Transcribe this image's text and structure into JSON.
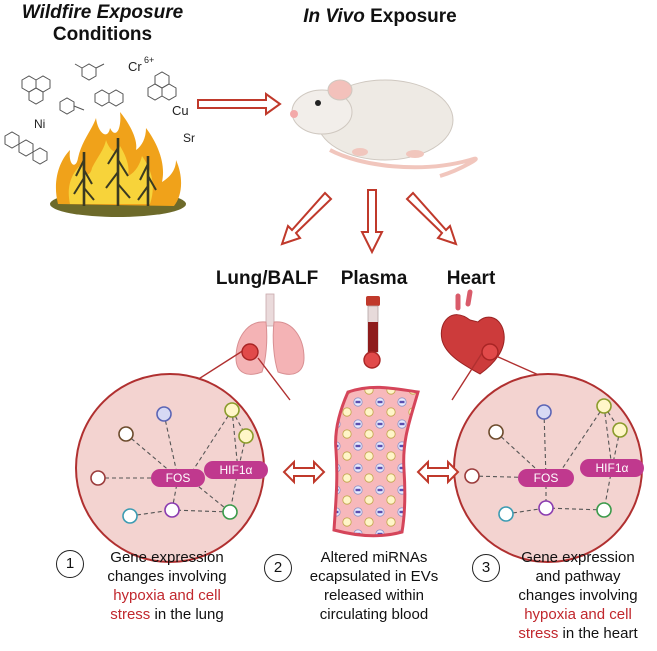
{
  "titles": {
    "exposure_line1": "Wildfire Exposure",
    "exposure_line2": "Conditions",
    "invivo_italic": "In Vivo",
    "invivo_rest": " Exposure"
  },
  "chemicals": [
    "Cr",
    "6+",
    "Ni",
    "Cu",
    "Sr"
  ],
  "tissues": {
    "lung": "Lung/BALF",
    "plasma": "Plasma",
    "heart": "Heart"
  },
  "network": {
    "gene1": "FOS",
    "gene2": "HIF1α"
  },
  "captions": [
    {
      "number": "1",
      "line1": "Gene expression",
      "line2": "changes involving",
      "highlight1": "hypoxia and cell",
      "highlight2": "stress",
      "tail": " in the lung"
    },
    {
      "number": "2",
      "line1": "Altered miRNAs",
      "line2": "ecapsulated in EVs",
      "line3": "released within",
      "line4": "circulating blood"
    },
    {
      "number": "3",
      "line1": "Gene expression",
      "line2": "and pathway",
      "line3": "changes involving",
      "highlight1": "hypoxia and cell",
      "highlight2": "stress",
      "tail": " in the heart"
    }
  ],
  "colors": {
    "arrow": "#c0392b",
    "circle_fill": "#f3d3d0",
    "circle_stroke": "#b03030",
    "gene_pill": "#c0398e",
    "vessel": "#f2a4a8",
    "vessel_edge": "#d5455a",
    "caption_highlight": "#c1272d"
  }
}
